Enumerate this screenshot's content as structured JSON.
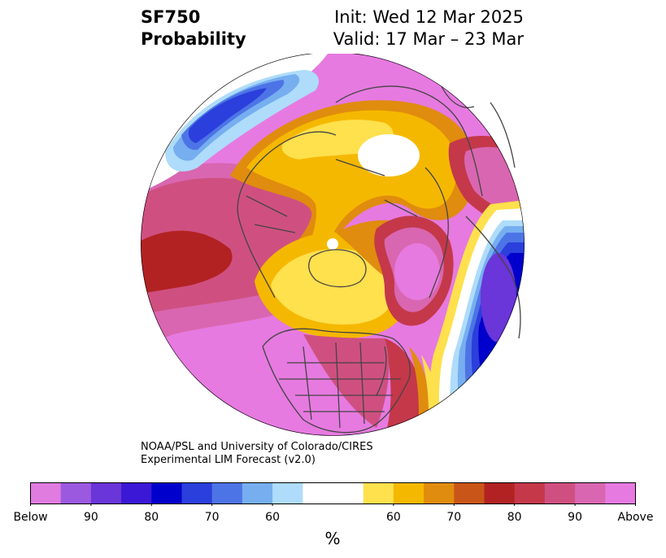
{
  "title": {
    "variable": "SF750",
    "product": "Probability",
    "init": "Init: Wed 12 Mar 2025",
    "valid": "Valid: 17 Mar – 23 Mar"
  },
  "credit": {
    "line1": "NOAA/PSL and University of Colorado/CIRES",
    "line2": "Experimental LIM Forecast (v2.0)"
  },
  "colorbar": {
    "colors": [
      "#e07be0",
      "#9b59e0",
      "#6a35d9",
      "#3b18d6",
      "#0000cc",
      "#2a3fdb",
      "#4d74e6",
      "#76aef0",
      "#aedcfa",
      "#ffffff",
      "#ffffff",
      "#ffe04d",
      "#f5b800",
      "#e08c0e",
      "#c95618",
      "#b22222",
      "#c4384a",
      "#cf5080",
      "#d966b0",
      "#e67ae0"
    ],
    "labels": [
      "Below",
      "90",
      "80",
      "70",
      "60",
      "60",
      "70",
      "80",
      "90",
      "Above"
    ],
    "unit": "%"
  },
  "map": {
    "projection": "north-polar-stereographic"
  }
}
